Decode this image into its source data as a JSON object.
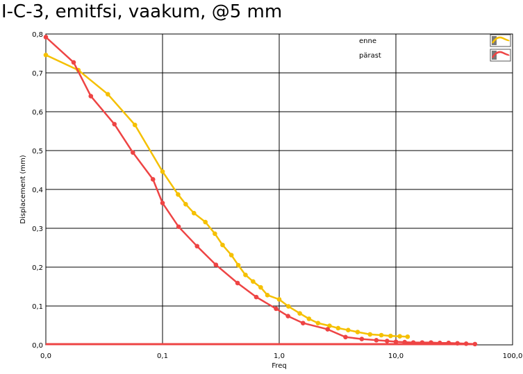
{
  "chart_data": {
    "type": "line",
    "title": "I-C-3, emitfsi, vaakum, @5 mm",
    "xlabel": "Freq",
    "ylabel": "Displacement (mm)",
    "x_scale": "log",
    "xlim": [
      0.01,
      100
    ],
    "ylim": [
      0,
      0.8
    ],
    "x_tick_labels": [
      "0,0",
      "0,1",
      "1,0",
      "10,0",
      "100,0"
    ],
    "y_tick_labels": [
      "0,0",
      "0,1",
      "0,2",
      "0,3",
      "0,4",
      "0,5",
      "0,6",
      "0,7",
      "0,8"
    ],
    "grid": true,
    "legend_position": "top-right",
    "series": [
      {
        "name": "enne",
        "color": "#f5c000",
        "x": [
          0.01,
          0.019,
          0.034,
          0.058,
          0.1,
          0.136,
          0.158,
          0.186,
          0.233,
          0.281,
          0.327,
          0.389,
          0.446,
          0.514,
          0.597,
          0.694,
          0.792,
          1.0,
          1.2,
          1.5,
          1.8,
          2.15,
          2.7,
          3.2,
          3.9,
          4.7,
          6.0,
          7.5,
          9.0,
          10.8,
          12.6
        ],
        "y": [
          0.746,
          0.707,
          0.645,
          0.566,
          0.446,
          0.387,
          0.362,
          0.339,
          0.316,
          0.286,
          0.257,
          0.231,
          0.205,
          0.18,
          0.163,
          0.148,
          0.128,
          0.117,
          0.099,
          0.081,
          0.067,
          0.056,
          0.049,
          0.043,
          0.038,
          0.033,
          0.027,
          0.025,
          0.023,
          0.022,
          0.021
        ]
      },
      {
        "name": "pärast",
        "color": "#ee4444",
        "x": [
          0.01,
          0.0173,
          0.0243,
          0.0387,
          0.0557,
          0.0828,
          0.1,
          0.1373,
          0.1977,
          0.2867,
          0.4398,
          0.6359,
          0.94,
          1.19,
          1.6,
          2.6,
          3.7,
          5.1,
          6.8,
          8.4,
          10.0,
          11.9,
          14.1,
          16.8,
          20.0,
          23.8,
          28.3,
          33.7,
          40.0,
          47.6
        ],
        "y": [
          0.792,
          0.727,
          0.64,
          0.568,
          0.495,
          0.426,
          0.365,
          0.304,
          0.254,
          0.206,
          0.159,
          0.123,
          0.093,
          0.074,
          0.056,
          0.04,
          0.02,
          0.015,
          0.012,
          0.01,
          0.008,
          0.007,
          0.006,
          0.006,
          0.006,
          0.005,
          0.005,
          0.004,
          0.003,
          0.002
        ]
      }
    ]
  },
  "colors": {
    "frame": "#000000",
    "grid": "#000000",
    "axis_line": "#ee4444"
  },
  "icons": {
    "legend_swatch": "legend-plot-icon"
  }
}
